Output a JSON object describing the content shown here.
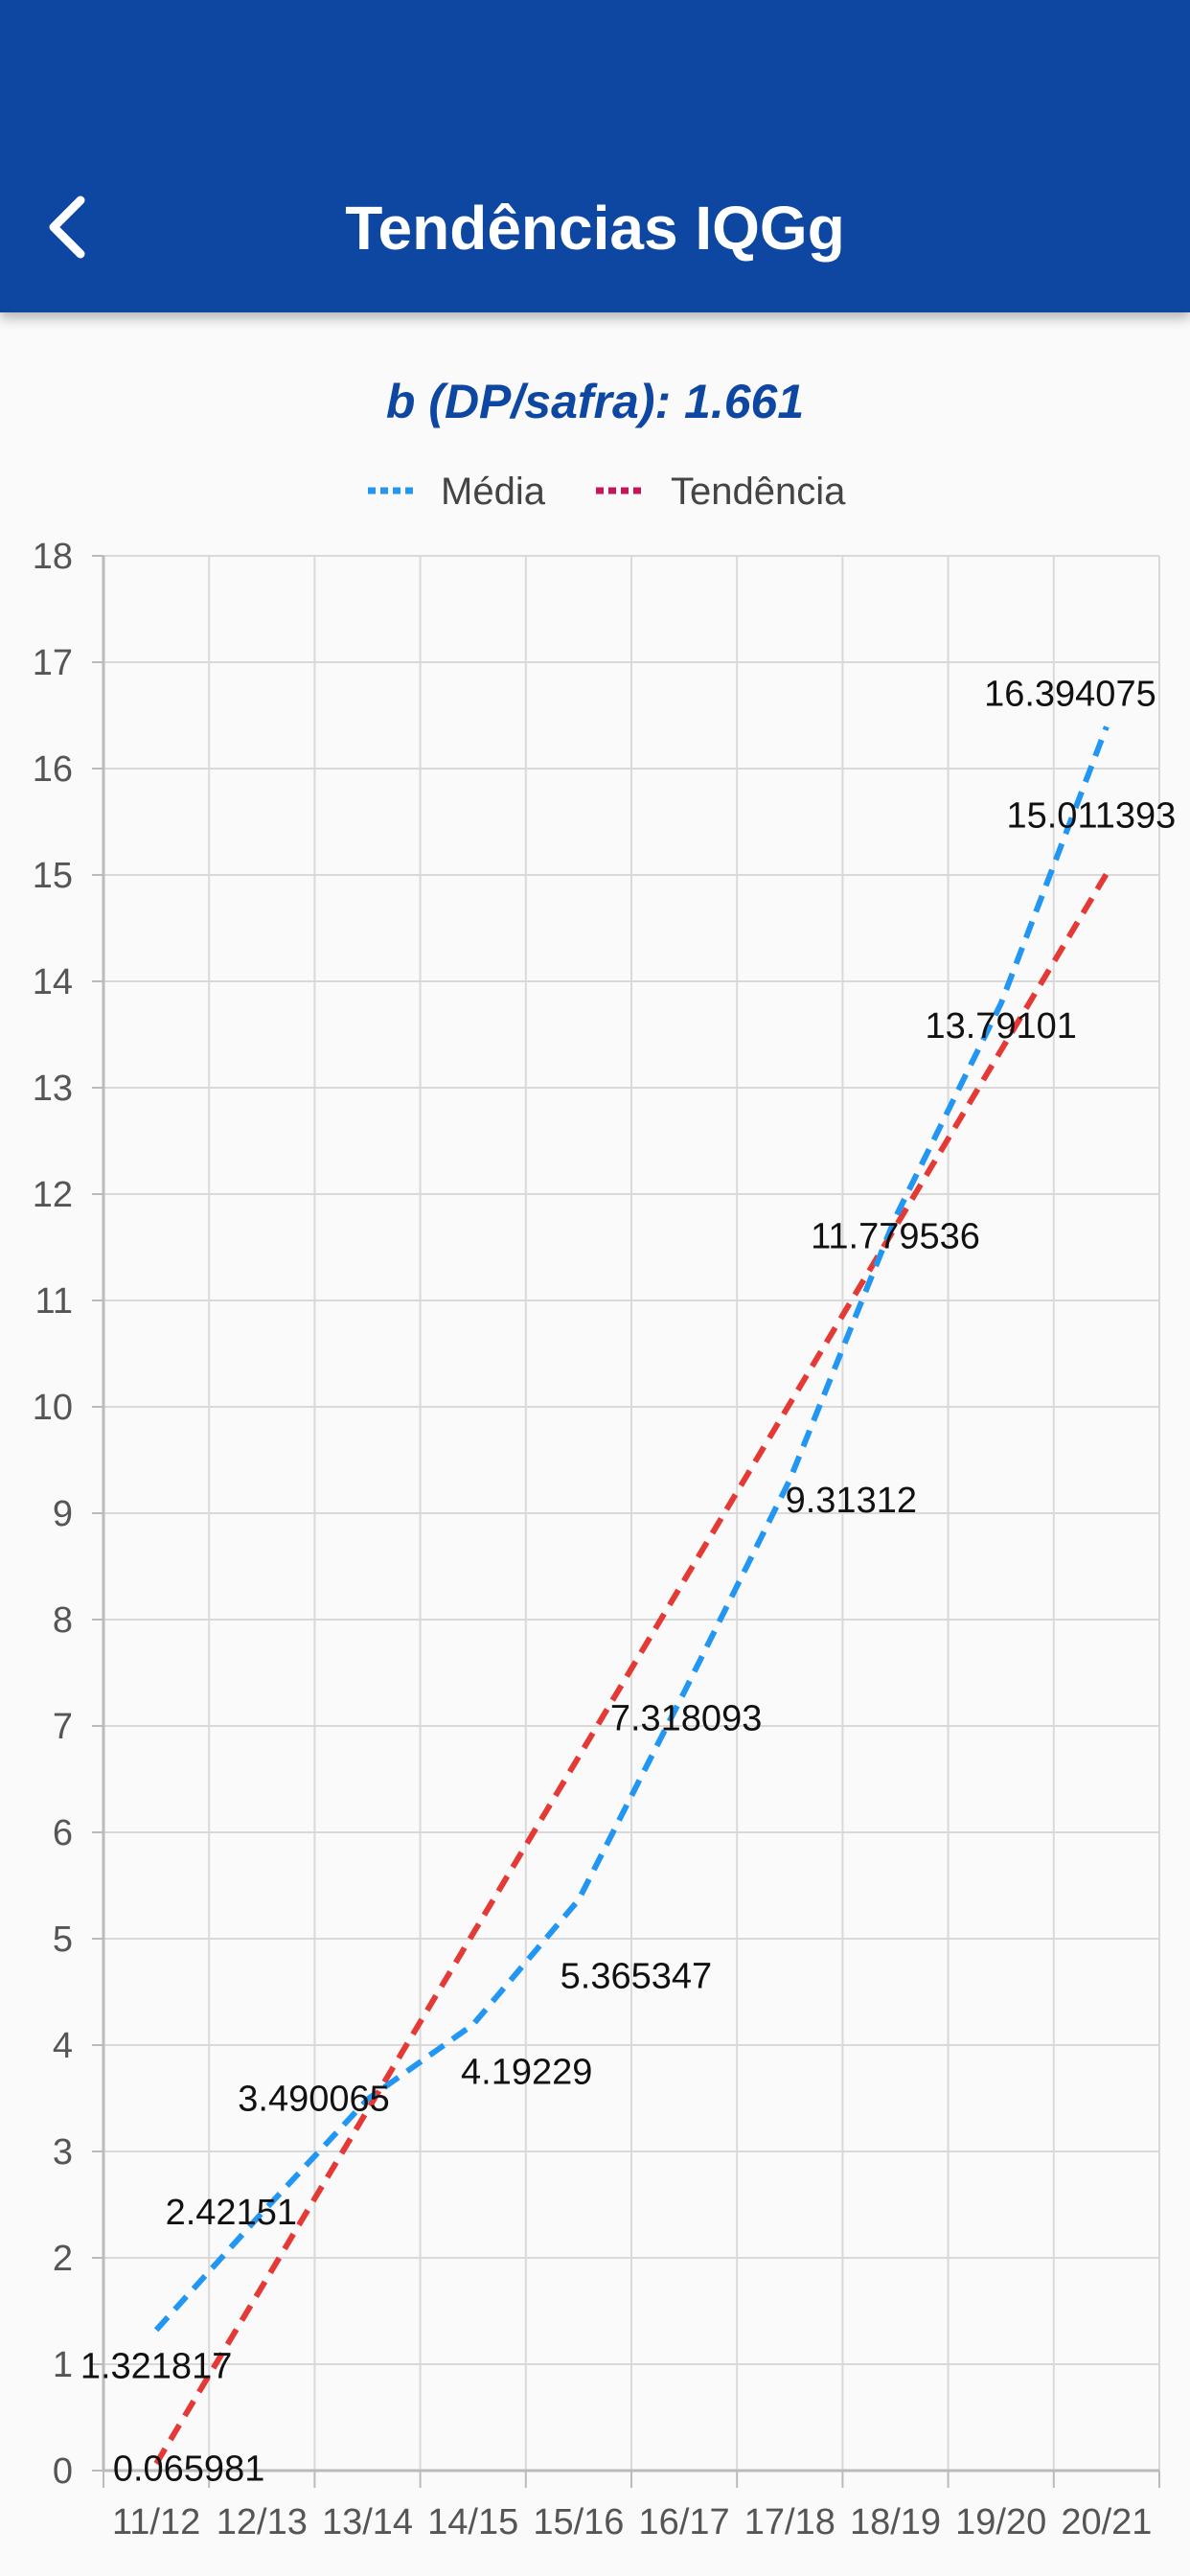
{
  "header": {
    "title": "Tendências IQGg",
    "back_icon": "chevron-left-icon"
  },
  "subtitle": "b (DP/safra): 1.661",
  "colors": {
    "header_bg": "#0d47a1",
    "media": "#2196f3",
    "tendencia": "#e53935",
    "tendencia_legend": "#c2185b"
  },
  "chart_data": {
    "type": "line",
    "title": "",
    "xlabel": "",
    "ylabel": "",
    "categories": [
      "11/12",
      "12/13",
      "13/14",
      "14/15",
      "15/16",
      "16/17",
      "17/18",
      "18/19",
      "19/20",
      "20/21"
    ],
    "ylim": [
      0,
      18
    ],
    "yticks": [
      0,
      1,
      2,
      3,
      4,
      5,
      6,
      7,
      8,
      9,
      10,
      11,
      12,
      13,
      14,
      15,
      16,
      17,
      18
    ],
    "grid": true,
    "legend_position": "top",
    "series": [
      {
        "name": "Média",
        "color": "#2196f3",
        "dash": true,
        "values": [
          1.321817,
          2.42151,
          3.490065,
          4.19229,
          5.365347,
          7.318093,
          9.31312,
          11.779536,
          13.79101,
          16.394075
        ],
        "labels": [
          "1.321817",
          "2.42151",
          "3.490065",
          "4.19229",
          "5.365347",
          "7.318093",
          "9.31312",
          "11.779536",
          "13.79101",
          "16.394075"
        ]
      },
      {
        "name": "Tendência",
        "color": "#e53935",
        "dash": true,
        "values": [
          0.065981,
          null,
          null,
          null,
          null,
          null,
          null,
          null,
          null,
          15.011393
        ],
        "labels": [
          "0.065981",
          "",
          "",
          "",
          "",
          "",
          "",
          "",
          "",
          "15.011393"
        ]
      }
    ]
  }
}
